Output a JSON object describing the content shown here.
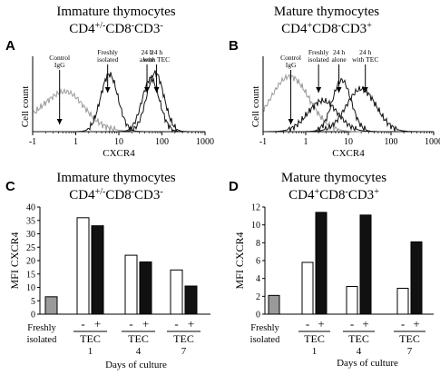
{
  "panels": {
    "A": {
      "letter": "A",
      "title_line1": "Immature thymocytes",
      "title_line2": "CD4+/-CD8-CD3-"
    },
    "B": {
      "letter": "B",
      "title_line1": "Mature thymocytes",
      "title_line2": "CD4+CD8-CD3+"
    },
    "C": {
      "letter": "C",
      "title_line1": "Immature thymocytes",
      "title_line2": "CD4+/-CD8-CD3-"
    },
    "D": {
      "letter": "D",
      "title_line1": "Mature thymocytes",
      "title_line2": "CD4+CD8-CD3+"
    }
  },
  "colors": {
    "white_bar": "#ffffff",
    "black_bar": "#111111",
    "gray_bar": "#9a9a9a",
    "control_curve": "#9a9a9a",
    "curve": "#111111"
  },
  "chart_data": [
    {
      "panel": "A",
      "type": "line",
      "title": "Immature thymocytes CD4+/-CD8-CD3-",
      "ylabel": "Cell count",
      "xlabel": "CXCR4",
      "x_scale": "log",
      "x_ticks": [
        "-1",
        "1",
        "10",
        "100",
        "1000"
      ],
      "annotations": [
        {
          "lines": [
            "Control",
            "IgG"
          ],
          "x": 0.25
        },
        {
          "lines": [
            "Freshly",
            "isolated"
          ],
          "x": 5.5
        },
        {
          "lines": [
            "24 h",
            "alone"
          ],
          "x": 45
        },
        {
          "lines": [
            "24 h",
            "with TEC"
          ],
          "x": 75
        }
      ],
      "series": [
        {
          "role": "control",
          "peaks": [
            {
              "x": 0.25,
              "h": 0.45,
              "w": 0.55
            },
            {
              "x": 0.8,
              "h": 0.12,
              "w": 0.3
            }
          ]
        },
        {
          "role": "freshly",
          "peaks": [
            {
              "x": 6,
              "h": 0.78,
              "w": 0.2
            }
          ]
        },
        {
          "role": "24h_alone",
          "peaks": [
            {
              "x": 55,
              "h": 0.72,
              "w": 0.2
            }
          ]
        },
        {
          "role": "24h_tec",
          "peaks": [
            {
              "x": 70,
              "h": 0.8,
              "w": 0.2
            }
          ]
        }
      ]
    },
    {
      "panel": "B",
      "type": "line",
      "title": "Mature thymocytes CD4+CD8-CD3+",
      "ylabel": "Cell count",
      "xlabel": "CXCR4",
      "x_scale": "log",
      "x_ticks": [
        "-1",
        "1",
        "10",
        "100",
        "1000"
      ],
      "annotations": [
        {
          "lines": [
            "Control",
            "IgG"
          ],
          "x": 0.3
        },
        {
          "lines": [
            "Freshly",
            "isolated"
          ],
          "x": 2
        },
        {
          "lines": [
            "24 h",
            "alone"
          ],
          "x": 6
        },
        {
          "lines": [
            "24 h",
            "with TEC"
          ],
          "x": 25
        }
      ],
      "series": [
        {
          "role": "control",
          "peaks": [
            {
              "x": 0.25,
              "h": 0.75,
              "w": 0.45
            }
          ]
        },
        {
          "role": "freshly",
          "peaks": [
            {
              "x": 2.5,
              "h": 0.42,
              "w": 0.35
            }
          ]
        },
        {
          "role": "24h_alone",
          "peaks": [
            {
              "x": 7,
              "h": 0.7,
              "w": 0.22
            }
          ]
        },
        {
          "role": "24h_tec",
          "peaks": [
            {
              "x": 20,
              "h": 0.58,
              "w": 0.35
            }
          ]
        }
      ]
    },
    {
      "panel": "C",
      "type": "bar",
      "title": "Immature thymocytes CD4+/-CD8-CD3-",
      "ylabel": "MFI CXCR4",
      "ylim": [
        0,
        40
      ],
      "yticks": [
        0,
        5,
        10,
        15,
        20,
        25,
        30,
        35,
        40
      ],
      "freshly": {
        "label_line1": "Freshly",
        "label_line2": "isolated",
        "value": 6.5
      },
      "groups": [
        {
          "label": "TEC",
          "day": "1",
          "minus": 36,
          "plus": 33
        },
        {
          "label": "TEC",
          "day": "4",
          "minus": 22,
          "plus": 19.5
        },
        {
          "label": "TEC",
          "day": "7",
          "minus": 16.5,
          "plus": 10.5
        }
      ],
      "minus_label": "-",
      "plus_label": "+"
    },
    {
      "panel": "D",
      "type": "bar",
      "title": "Mature thymocytes CD4+CD8-CD3+",
      "ylabel": "MFI CXCR4",
      "xlabel": "Days of culture",
      "ylim": [
        0,
        12
      ],
      "yticks": [
        0,
        2,
        4,
        6,
        8,
        10,
        12
      ],
      "freshly": {
        "label_line1": "Freshly",
        "label_line2": "isolated",
        "value": 2.1
      },
      "groups": [
        {
          "label": "TEC",
          "day": "1",
          "minus": 5.8,
          "plus": 11.4
        },
        {
          "label": "TEC",
          "day": "4",
          "minus": 3.1,
          "plus": 11.1
        },
        {
          "label": "TEC",
          "day": "7",
          "minus": 2.9,
          "plus": 8.1
        }
      ],
      "minus_label": "-",
      "plus_label": "+"
    }
  ],
  "footer_c": "Days of culture"
}
